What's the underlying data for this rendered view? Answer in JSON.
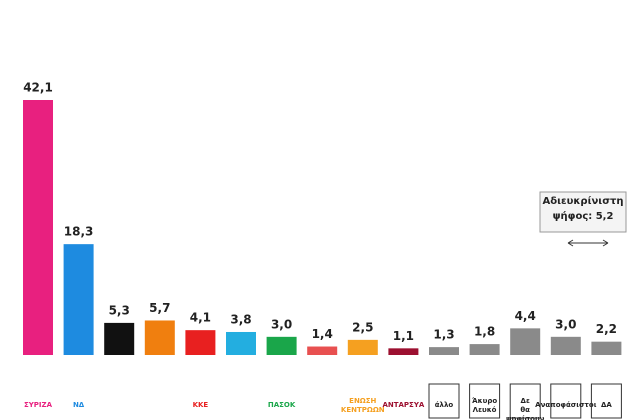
{
  "chart_data": {
    "type": "bar",
    "categories": [
      "ΣΥΡΙΖΑ",
      "ΝΔ",
      null,
      null,
      "ΚΚΕ",
      null,
      "ΠΑΣΟΚ",
      null,
      "ΕΝΩΣΗ ΚΕΝΤΡΩΩΝ",
      "ΑΝΤΑΡΣΥΑ",
      "άλλο",
      "Άκυρο Λευκό",
      "Δε θα ψηφίσουν",
      "Αναποφάσιστοι",
      "ΔΑ"
    ],
    "values": [
      42.1,
      18.3,
      5.3,
      5.7,
      4.1,
      3.8,
      3.0,
      1.4,
      2.5,
      1.1,
      1.3,
      1.8,
      4.4,
      3.0,
      2.2
    ],
    "value_labels": [
      "42,1",
      "18,3",
      "5,3",
      "5,7",
      "4,1",
      "3,8",
      "3,0",
      "1,4",
      "2,5",
      "1,1",
      "1,3",
      "1,8",
      "4,4",
      "3,0",
      "2,2"
    ],
    "colors": [
      "#e8207f",
      "#1e8be0",
      "#111111",
      "#f07f0f",
      "#e82020",
      "#23aee0",
      "#1aa64a",
      "#e85050",
      "#f5a020",
      "#9c1030",
      "#8a8a8a",
      "#8a8a8a",
      "#8a8a8a",
      "#8a8a8a",
      "#8a8a8a"
    ],
    "annotation": "Αδιευκρίνιστη ψήφος: 5,2"
  }
}
